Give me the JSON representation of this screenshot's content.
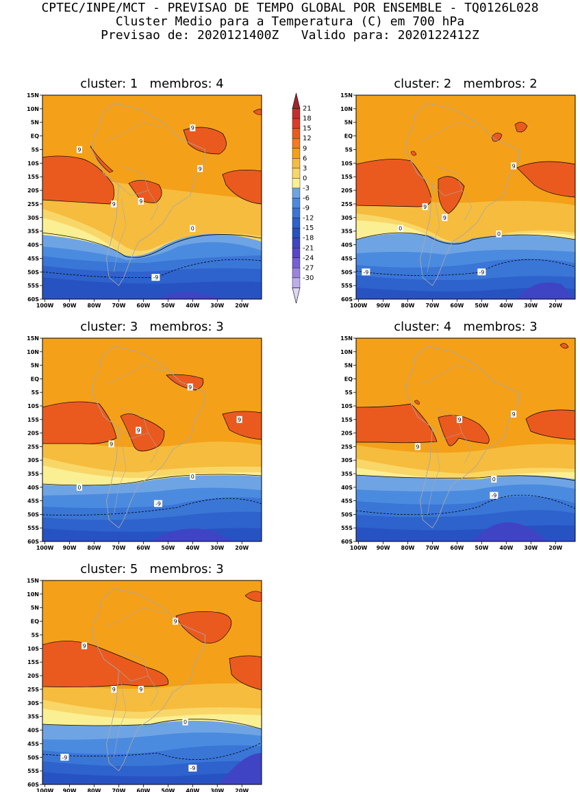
{
  "header": {
    "line1": "CPTEC/INPE/MCT - PREVISAO DE TEMPO GLOBAL POR ENSEMBLE - TQ0126L028",
    "line2": "Cluster Medio para a Temperatura (C) em 700 hPa",
    "line3": "Previsao de: 2020121400Z   Valido para: 2020122412Z"
  },
  "axes": {
    "lat_labels": [
      "15N",
      "10N",
      "5N",
      "EQ",
      "5S",
      "10S",
      "15S",
      "20S",
      "25S",
      "30S",
      "35S",
      "40S",
      "45S",
      "50S",
      "55S",
      "60S"
    ],
    "lon_labels": [
      "100W",
      "90W",
      "80W",
      "70W",
      "60W",
      "50W",
      "40W",
      "30W",
      "20W"
    ]
  },
  "panels": [
    {
      "title": "cluster: 1   membros: 4",
      "contour_labels": [
        {
          "text": "9",
          "lon": -40,
          "lat": 3
        },
        {
          "text": "9",
          "lon": -86,
          "lat": -5
        },
        {
          "text": "9",
          "lon": -37,
          "lat": -12
        },
        {
          "text": "9",
          "lon": -72,
          "lat": -25
        },
        {
          "text": "9",
          "lon": -61,
          "lat": -24
        },
        {
          "text": "0",
          "lon": -40,
          "lat": -34
        },
        {
          "text": "-9",
          "lon": -55,
          "lat": -52
        }
      ]
    },
    {
      "title": "cluster: 2   membros: 2",
      "contour_labels": [
        {
          "text": "9",
          "lon": -37,
          "lat": -11
        },
        {
          "text": "9",
          "lon": -73,
          "lat": -26
        },
        {
          "text": "9",
          "lon": -65,
          "lat": -30
        },
        {
          "text": "0",
          "lon": -83,
          "lat": -34
        },
        {
          "text": "0",
          "lon": -43,
          "lat": -36
        },
        {
          "text": "-9",
          "lon": -97,
          "lat": -50
        },
        {
          "text": "-9",
          "lon": -50,
          "lat": -50
        }
      ]
    },
    {
      "title": "cluster: 3   membros: 3",
      "contour_labels": [
        {
          "text": "9",
          "lon": -41,
          "lat": -3
        },
        {
          "text": "9",
          "lon": -21,
          "lat": -15
        },
        {
          "text": "9",
          "lon": -62,
          "lat": -19
        },
        {
          "text": "9",
          "lon": -73,
          "lat": -24
        },
        {
          "text": "0",
          "lon": -86,
          "lat": -40
        },
        {
          "text": "0",
          "lon": -40,
          "lat": -36
        },
        {
          "text": "-9",
          "lon": -54,
          "lat": -46
        }
      ]
    },
    {
      "title": "cluster: 4   membros: 3",
      "contour_labels": [
        {
          "text": "9",
          "lon": -59,
          "lat": -15
        },
        {
          "text": "9",
          "lon": -37,
          "lat": -13
        },
        {
          "text": "9",
          "lon": -76,
          "lat": -25
        },
        {
          "text": "0",
          "lon": -45,
          "lat": -37
        },
        {
          "text": "-9",
          "lon": -45,
          "lat": -43
        }
      ]
    },
    {
      "title": "cluster: 5   membros: 3",
      "contour_labels": [
        {
          "text": "9",
          "lon": -47,
          "lat": 0
        },
        {
          "text": "9",
          "lon": -84,
          "lat": -9
        },
        {
          "text": "9",
          "lon": -72,
          "lat": -25
        },
        {
          "text": "9",
          "lon": -61,
          "lat": -25
        },
        {
          "text": "0",
          "lon": -43,
          "lat": -37
        },
        {
          "text": "-9",
          "lon": -92,
          "lat": -50
        },
        {
          "text": "-9",
          "lon": -40,
          "lat": -54
        }
      ]
    }
  ],
  "colorbar": {
    "labels": [
      "21",
      "18",
      "15",
      "12",
      "9",
      "6",
      "3",
      "0",
      "-3",
      "-6",
      "-9",
      "-12",
      "-15",
      "-18",
      "-21",
      "-24",
      "-27",
      "-30"
    ],
    "colors": [
      "#a5232d",
      "#c82e2e",
      "#df3b27",
      "#ea5a1f",
      "#f07d1e",
      "#f4a019",
      "#f6bc3e",
      "#f8d768",
      "#fbef94",
      "#6fa4e4",
      "#4b8bdf",
      "#3a76d6",
      "#2e62cc",
      "#2753c2",
      "#3f44c4",
      "#5a46cc",
      "#7860d4",
      "#9a84dc",
      "#bdadea",
      "#ddd6f5"
    ]
  },
  "colors": {
    "land_outline": "#a8a8a8",
    "contour_line": "#000000"
  }
}
